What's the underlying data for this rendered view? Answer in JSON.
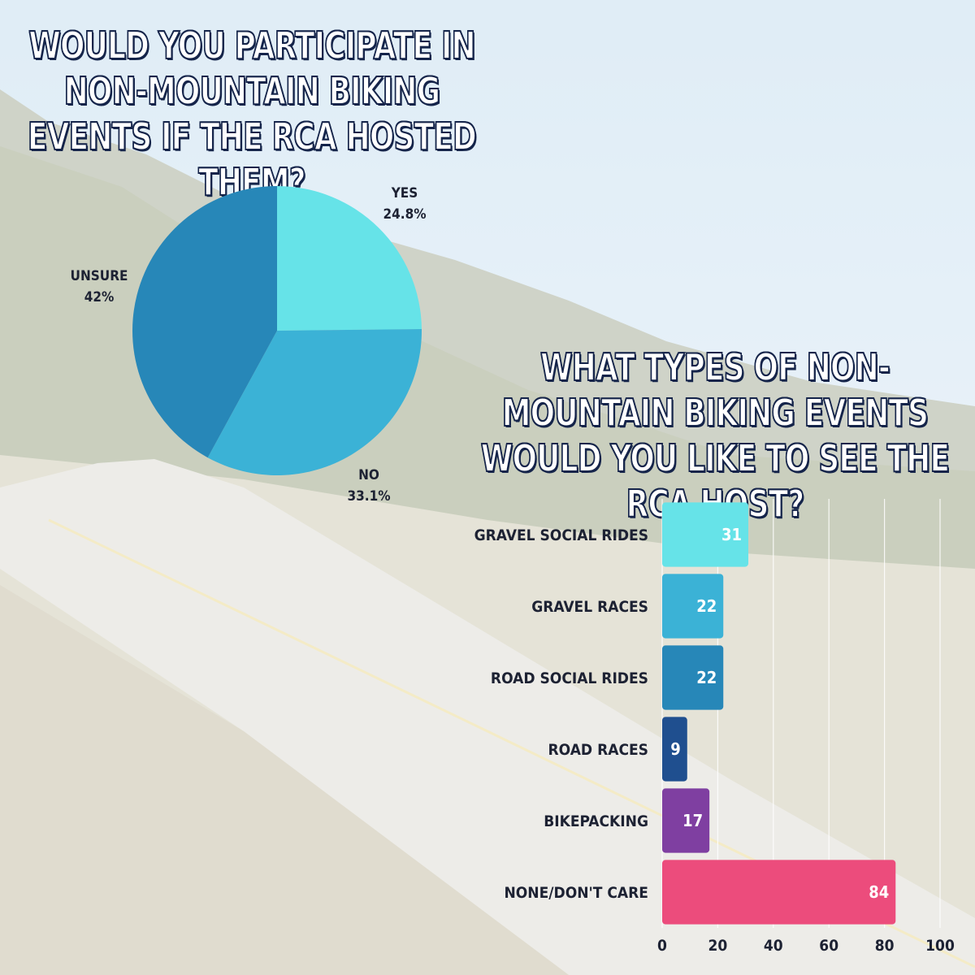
{
  "chart_data": [
    {
      "type": "pie",
      "title": "Would you participate in non-mountain biking events if the RCA hosted them?",
      "slices": [
        {
          "label": "Yes",
          "value": 24.8,
          "value_text": "24.8%",
          "color": "#66e3e8"
        },
        {
          "label": "No",
          "value": 33.1,
          "value_text": "33.1%",
          "color": "#3bb2d6"
        },
        {
          "label": "Unsure",
          "value": 42,
          "value_text": "42%",
          "color": "#2787b8"
        }
      ]
    },
    {
      "type": "bar",
      "orientation": "horizontal",
      "title": "What types of non-mountain biking events would you like to see the RCA host?",
      "categories": [
        "Gravel social rides",
        "Gravel races",
        "Road social rides",
        "Road races",
        "Bikepacking",
        "None/don't care"
      ],
      "values": [
        31,
        22,
        22,
        9,
        17,
        84
      ],
      "colors": [
        "#66e3e8",
        "#3bb2d6",
        "#2787b8",
        "#1f4f8f",
        "#7f3fa1",
        "#ec4c7c"
      ],
      "xlim": [
        0,
        100
      ],
      "xticks": [
        0,
        20,
        40,
        60,
        80,
        100
      ],
      "grid": true
    }
  ]
}
